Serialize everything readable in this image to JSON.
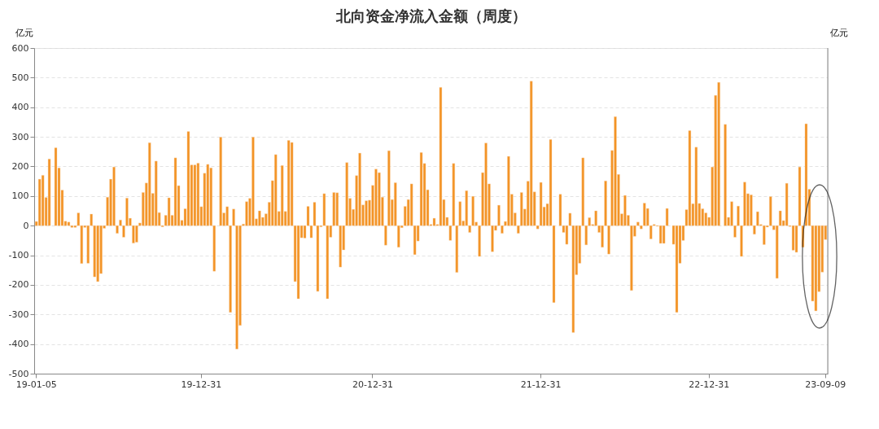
{
  "chart_data": {
    "type": "bar",
    "title": "北向资金净流入金额（周度）",
    "ylabel": "亿元",
    "y2label": "亿元",
    "categories": [
      "19-01-05",
      null,
      null,
      null,
      null,
      null,
      null,
      null,
      null,
      null,
      null,
      null,
      null,
      null,
      null,
      null,
      null,
      null,
      null,
      null,
      null,
      null,
      null,
      null,
      null,
      null,
      null,
      null,
      null,
      null,
      null,
      null,
      null,
      null,
      null,
      null,
      null,
      null,
      null,
      null,
      null,
      null,
      null,
      null,
      null,
      null,
      null,
      null,
      null,
      null,
      null,
      "19-12-31",
      null,
      null,
      null,
      null,
      null,
      null,
      null,
      null,
      null,
      null,
      null,
      null,
      null,
      null,
      null,
      null,
      null,
      null,
      null,
      null,
      null,
      null,
      null,
      null,
      null,
      null,
      null,
      null,
      null,
      null,
      null,
      null,
      null,
      null,
      null,
      null,
      null,
      null,
      null,
      null,
      null,
      null,
      null,
      null,
      null,
      null,
      null,
      null,
      null,
      null,
      null,
      null,
      "20-12-31",
      null,
      null,
      null,
      null,
      null,
      null,
      null,
      null,
      null,
      null,
      null,
      null,
      null,
      null,
      null,
      null,
      null,
      null,
      null,
      null,
      null,
      null,
      null,
      null,
      null,
      null,
      null,
      null,
      null,
      null,
      null,
      null,
      null,
      null,
      null,
      null,
      null,
      null,
      null,
      null,
      null,
      null,
      null,
      null,
      null,
      null,
      null,
      null,
      null,
      null,
      null,
      "21-12-31",
      null,
      null,
      null,
      null,
      null,
      null,
      null,
      null,
      null,
      null,
      null,
      null,
      null,
      null,
      null,
      null,
      null,
      null,
      null,
      null,
      null,
      null,
      null,
      null,
      null,
      null,
      null,
      null,
      null,
      null,
      null,
      null,
      null,
      null,
      null,
      null,
      null,
      null,
      null,
      null,
      null,
      null,
      null,
      null,
      null,
      null,
      null,
      null,
      null,
      null,
      null,
      "22-12-31",
      null,
      null,
      null,
      null,
      null,
      null,
      null,
      null,
      null,
      null,
      null,
      null,
      null,
      null,
      null,
      null,
      null,
      null,
      null,
      null,
      null,
      null,
      null,
      null,
      null,
      null,
      null,
      null,
      null,
      null,
      null,
      null,
      null,
      null,
      null,
      "23-09-09"
    ],
    "values": [
      14,
      157,
      170,
      95,
      225,
      null,
      263,
      195,
      120,
      15,
      12,
      -6,
      -6,
      43,
      -128,
      -6,
      -127,
      39,
      -173,
      -189,
      -162,
      -9,
      96,
      157,
      198,
      -26,
      19,
      -39,
      93,
      25,
      -59,
      -56,
      9,
      112,
      144,
      280,
      109,
      218,
      44,
      -4,
      35,
      94,
      35,
      229,
      135,
      18,
      57,
      318,
      205,
      205,
      211,
      64,
      177,
      207,
      195,
      -154,
      null,
      299,
      43,
      64,
      -293,
      56,
      -417,
      -337,
      5,
      81,
      92,
      299,
      23,
      50,
      28,
      40,
      79,
      152,
      240,
      48,
      203,
      48,
      288,
      281,
      -189,
      -247,
      -41,
      -42,
      65,
      -41,
      79,
      -222,
      -4,
      108,
      -247,
      -39,
      112,
      111,
      -140,
      -82,
      213,
      92,
      55,
      169,
      245,
      70,
      84,
      86,
      136,
      191,
      179,
      96,
      -66,
      253,
      88,
      145,
      -73,
      -7,
      65,
      88,
      141,
      -98,
      -52,
      247,
      210,
      121,
      4,
      25,
      4,
      467,
      88,
      28,
      -50,
      210,
      -158,
      81,
      16,
      118,
      -23,
      99,
      12,
      -104,
      179,
      279,
      141,
      -88,
      -16,
      69,
      -26,
      14,
      234,
      106,
      43,
      -26,
      112,
      56,
      150,
      488,
      114,
      -11,
      146,
      63,
      74,
      291,
      -260,
      null,
      106,
      -23,
      -63,
      42,
      -361,
      -166,
      -127,
      229,
      -65,
      27,
      4,
      50,
      -23,
      -73,
      151,
      -96,
      254,
      368,
      173,
      40,
      102,
      35,
      -219,
      -36,
      12,
      -11,
      76,
      58,
      -45,
      4,
      -2,
      -60,
      -60,
      58,
      null,
      -63,
      -293,
      -127,
      -50,
      54,
      321,
      74,
      265,
      75,
      57,
      43,
      28,
      198,
      440,
      484,
      null,
      342,
      28,
      81,
      -39,
      66,
      -104,
      147,
      108,
      104,
      -29,
      47,
      4,
      -64,
      -5,
      98,
      -14,
      -178,
      50,
      17,
      143,
      -3,
      -83,
      -90,
      198,
      -73,
      344,
      123,
      -255,
      -288,
      -223,
      -157,
      -47
    ],
    "color": "#f39325",
    "ylim": [
      -500,
      600
    ],
    "yticks": [
      -500,
      -400,
      -300,
      -200,
      -100,
      0,
      100,
      200,
      300,
      400,
      500,
      600
    ],
    "grid": "y"
  }
}
